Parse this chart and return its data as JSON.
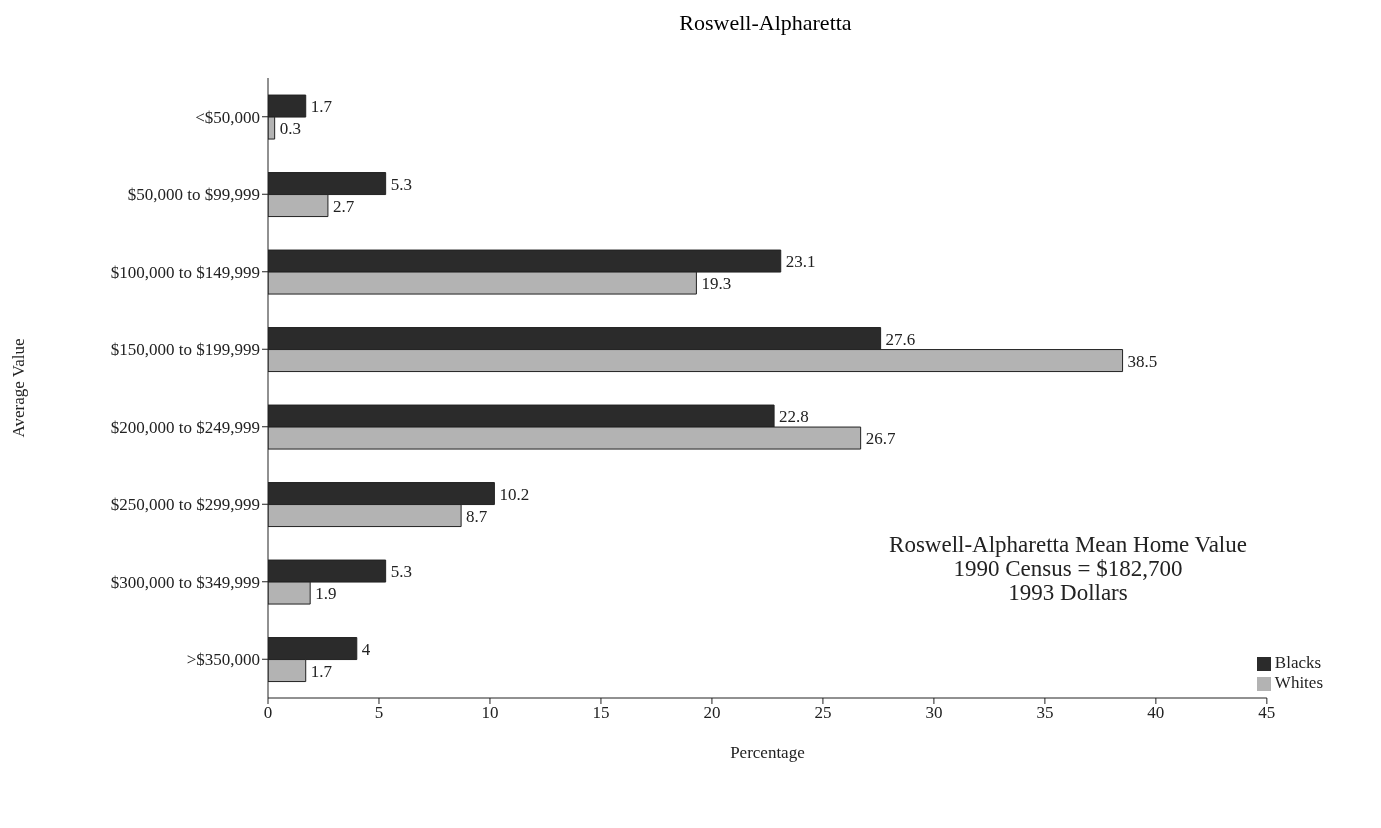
{
  "chart_data": {
    "type": "bar",
    "orientation": "horizontal",
    "title": "Roswell-Alpharetta",
    "xlabel": "Percentage",
    "ylabel": "Average Value",
    "categories": [
      "<$50,000",
      "$50,000 to $99,999",
      "$100,000 to $149,999",
      "$150,000 to $199,999",
      "$200,000 to $249,999",
      "$250,000 to $299,999",
      "$300,000 to $349,999",
      ">$350,000"
    ],
    "series": [
      {
        "name": "Blacks",
        "color": "#2b2b2b",
        "values": [
          1.7,
          5.3,
          23.1,
          27.6,
          22.8,
          10.2,
          5.3,
          4
        ]
      },
      {
        "name": "Whites",
        "color": "#b3b3b3",
        "values": [
          0.3,
          2.7,
          19.3,
          38.5,
          26.7,
          8.7,
          1.9,
          1.7
        ]
      }
    ],
    "xlim": [
      0,
      45
    ],
    "xticks": [
      0,
      5,
      10,
      15,
      20,
      25,
      30,
      35,
      40,
      45
    ],
    "grid": false,
    "legend": "bottom right",
    "data_labels": true,
    "annotations": [
      "Roswell-Alpharetta Mean Home Value\n1990 Census = $182,700\n1993 Dollars"
    ]
  }
}
